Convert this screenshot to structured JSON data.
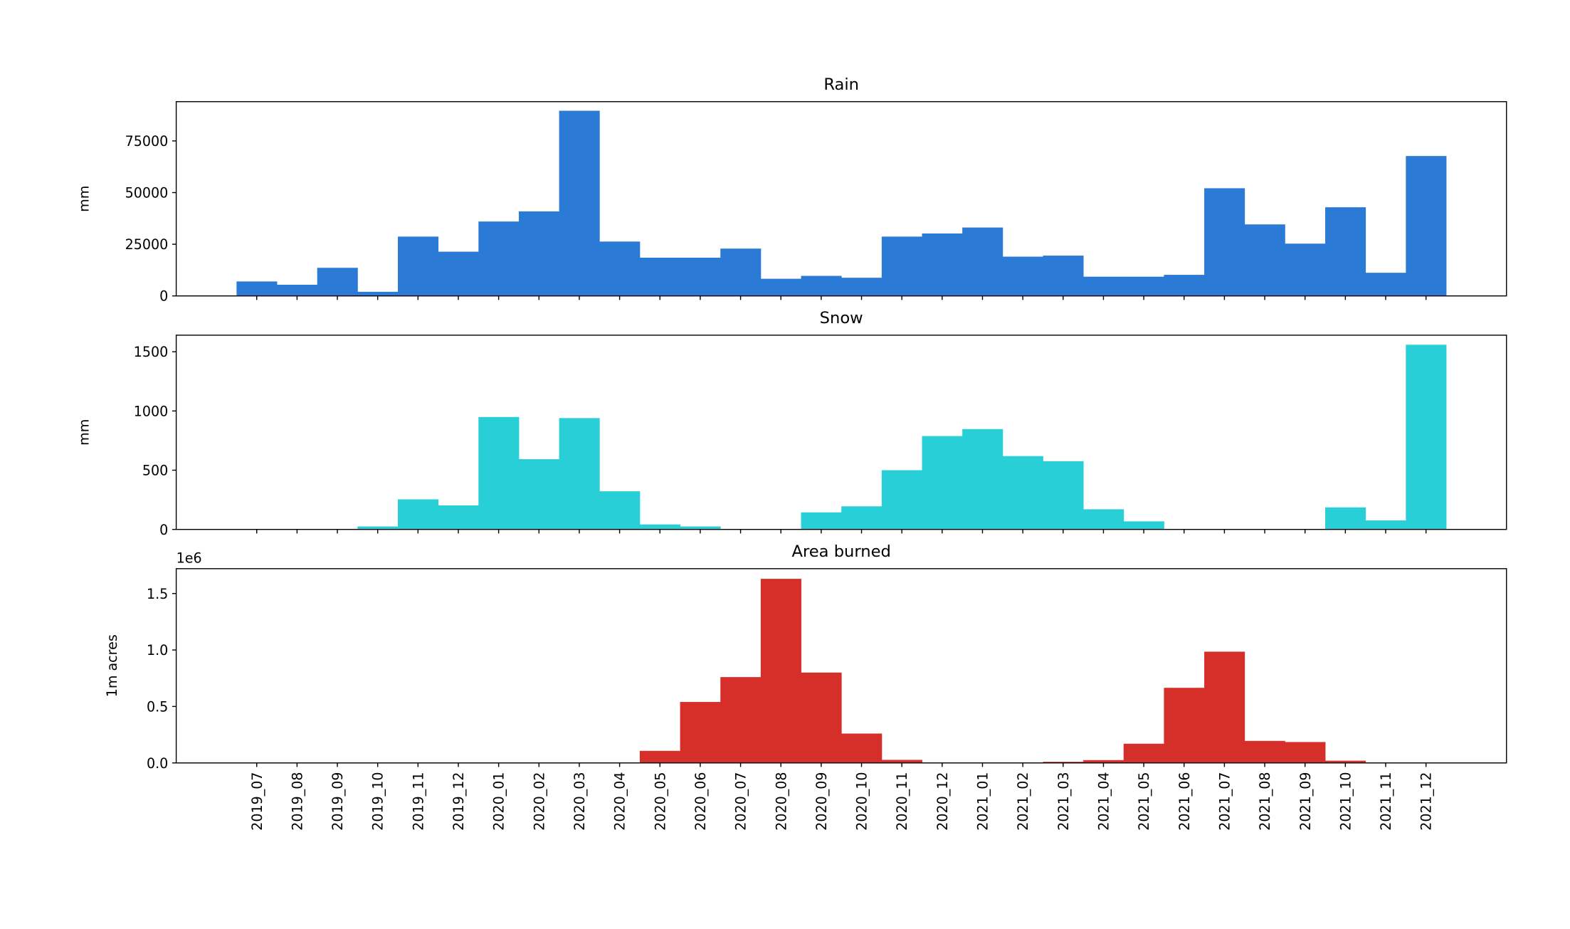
{
  "chart_data": [
    {
      "type": "bar",
      "title": "Rain",
      "ylabel": "mm",
      "xlabel": "",
      "color": "#2b7bd6",
      "ylim": [
        0,
        94000
      ],
      "yticks": [
        0,
        25000,
        50000,
        75000
      ],
      "ytick_labels": [
        "0",
        "25000",
        "50000",
        "75000"
      ],
      "show_xtick_labels": false,
      "offset_label": "",
      "categories": [
        "2019_07",
        "2019_08",
        "2019_09",
        "2019_10",
        "2019_11",
        "2019_12",
        "2020_01",
        "2020_02",
        "2020_03",
        "2020_04",
        "2020_05",
        "2020_06",
        "2020_07",
        "2020_08",
        "2020_09",
        "2020_10",
        "2020_11",
        "2020_12",
        "2021_01",
        "2021_02",
        "2021_03",
        "2021_04",
        "2021_05",
        "2021_06",
        "2021_07",
        "2021_08",
        "2021_09",
        "2021_10",
        "2021_11",
        "2021_12"
      ],
      "values": [
        7000,
        5400,
        13600,
        2000,
        28700,
        21400,
        36000,
        40900,
        89600,
        26300,
        18500,
        18500,
        22900,
        8300,
        9700,
        8800,
        28700,
        30200,
        33100,
        19000,
        19500,
        9300,
        9300,
        10200,
        52100,
        34600,
        25300,
        42900,
        11200,
        67700
      ]
    },
    {
      "type": "bar",
      "title": "Snow",
      "ylabel": "mm",
      "xlabel": "",
      "color": "#29cfd6",
      "ylim": [
        0,
        1640
      ],
      "yticks": [
        0,
        500,
        1000,
        1500
      ],
      "ytick_labels": [
        "0",
        "500",
        "1000",
        "1500"
      ],
      "show_xtick_labels": false,
      "offset_label": "",
      "categories": [
        "2019_07",
        "2019_08",
        "2019_09",
        "2019_10",
        "2019_11",
        "2019_12",
        "2020_01",
        "2020_02",
        "2020_03",
        "2020_04",
        "2020_05",
        "2020_06",
        "2020_07",
        "2020_08",
        "2020_09",
        "2020_10",
        "2020_11",
        "2020_12",
        "2021_01",
        "2021_02",
        "2021_03",
        "2021_04",
        "2021_05",
        "2021_06",
        "2021_07",
        "2021_08",
        "2021_09",
        "2021_10",
        "2021_11",
        "2021_12"
      ],
      "values": [
        0,
        0,
        0,
        25,
        254,
        203,
        949,
        593,
        940,
        322,
        42,
        25,
        0,
        0,
        144,
        195,
        500,
        788,
        847,
        619,
        576,
        170,
        68,
        0,
        0,
        0,
        0,
        186,
        76,
        1559
      ]
    },
    {
      "type": "bar",
      "title": "Area burned",
      "ylabel": "1m  acres",
      "xlabel": "",
      "color": "#d62e29",
      "ylim": [
        0,
        1.72
      ],
      "yticks": [
        0,
        0.5,
        1.0,
        1.5
      ],
      "ytick_labels": [
        "0.0",
        "0.5",
        "1.0",
        "1.5"
      ],
      "show_xtick_labels": true,
      "offset_label": "1e6",
      "categories": [
        "2019_07",
        "2019_08",
        "2019_09",
        "2019_10",
        "2019_11",
        "2019_12",
        "2020_01",
        "2020_02",
        "2020_03",
        "2020_04",
        "2020_05",
        "2020_06",
        "2020_07",
        "2020_08",
        "2020_09",
        "2020_10",
        "2020_11",
        "2020_12",
        "2021_01",
        "2021_02",
        "2021_03",
        "2021_04",
        "2021_05",
        "2021_06",
        "2021_07",
        "2021_08",
        "2021_09",
        "2021_10",
        "2021_11",
        "2021_12"
      ],
      "values": [
        0,
        0,
        0,
        0,
        0,
        0,
        0,
        0,
        0,
        0,
        0.107,
        0.54,
        0.76,
        1.63,
        0.8,
        0.26,
        0.027,
        0.003,
        0.002,
        0.002,
        0.01,
        0.025,
        0.17,
        0.665,
        0.985,
        0.195,
        0.185,
        0.02,
        0.002,
        0.001
      ]
    }
  ]
}
